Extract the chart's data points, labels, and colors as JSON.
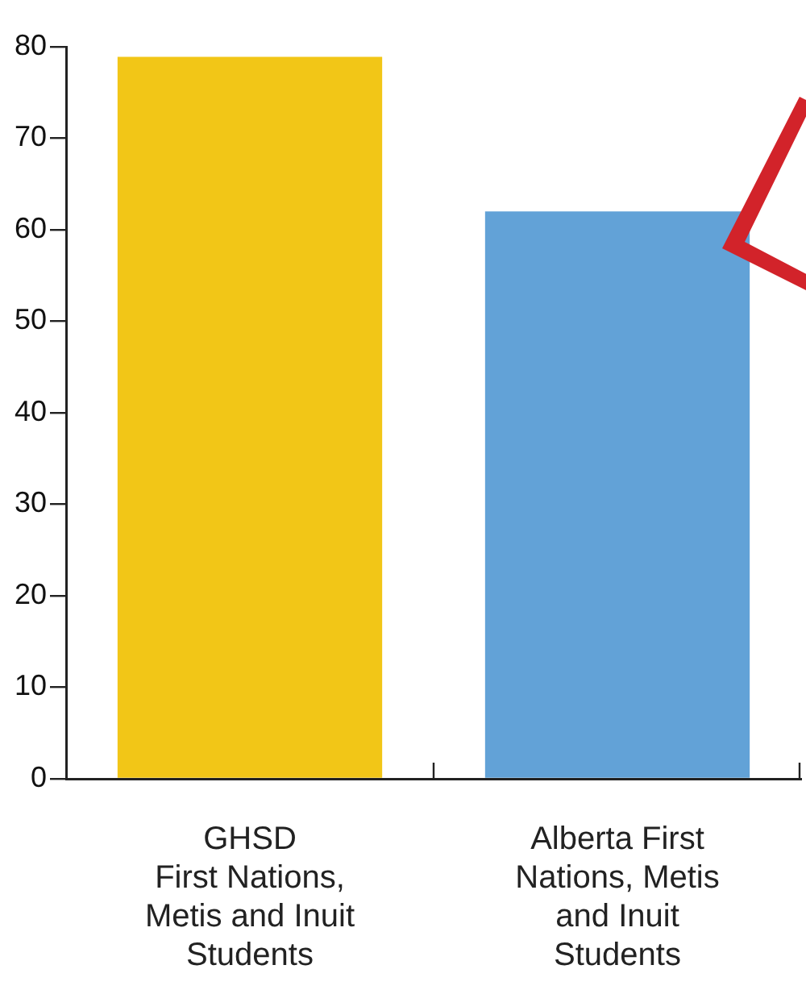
{
  "chart_data": {
    "type": "bar",
    "categories": [
      "GHSD\nFirst Nations,\nMetis and Inuit\nStudents",
      "Alberta First\nNations, Metis\nand Inuit\nStudents"
    ],
    "values": [
      78.9,
      62.0
    ],
    "colors": [
      "#f2c617",
      "#62a2d7"
    ],
    "ylim": [
      0,
      80
    ],
    "yticks": [
      0,
      10,
      20,
      30,
      40,
      50,
      60,
      70,
      80
    ],
    "grid": false,
    "legend": false
  }
}
